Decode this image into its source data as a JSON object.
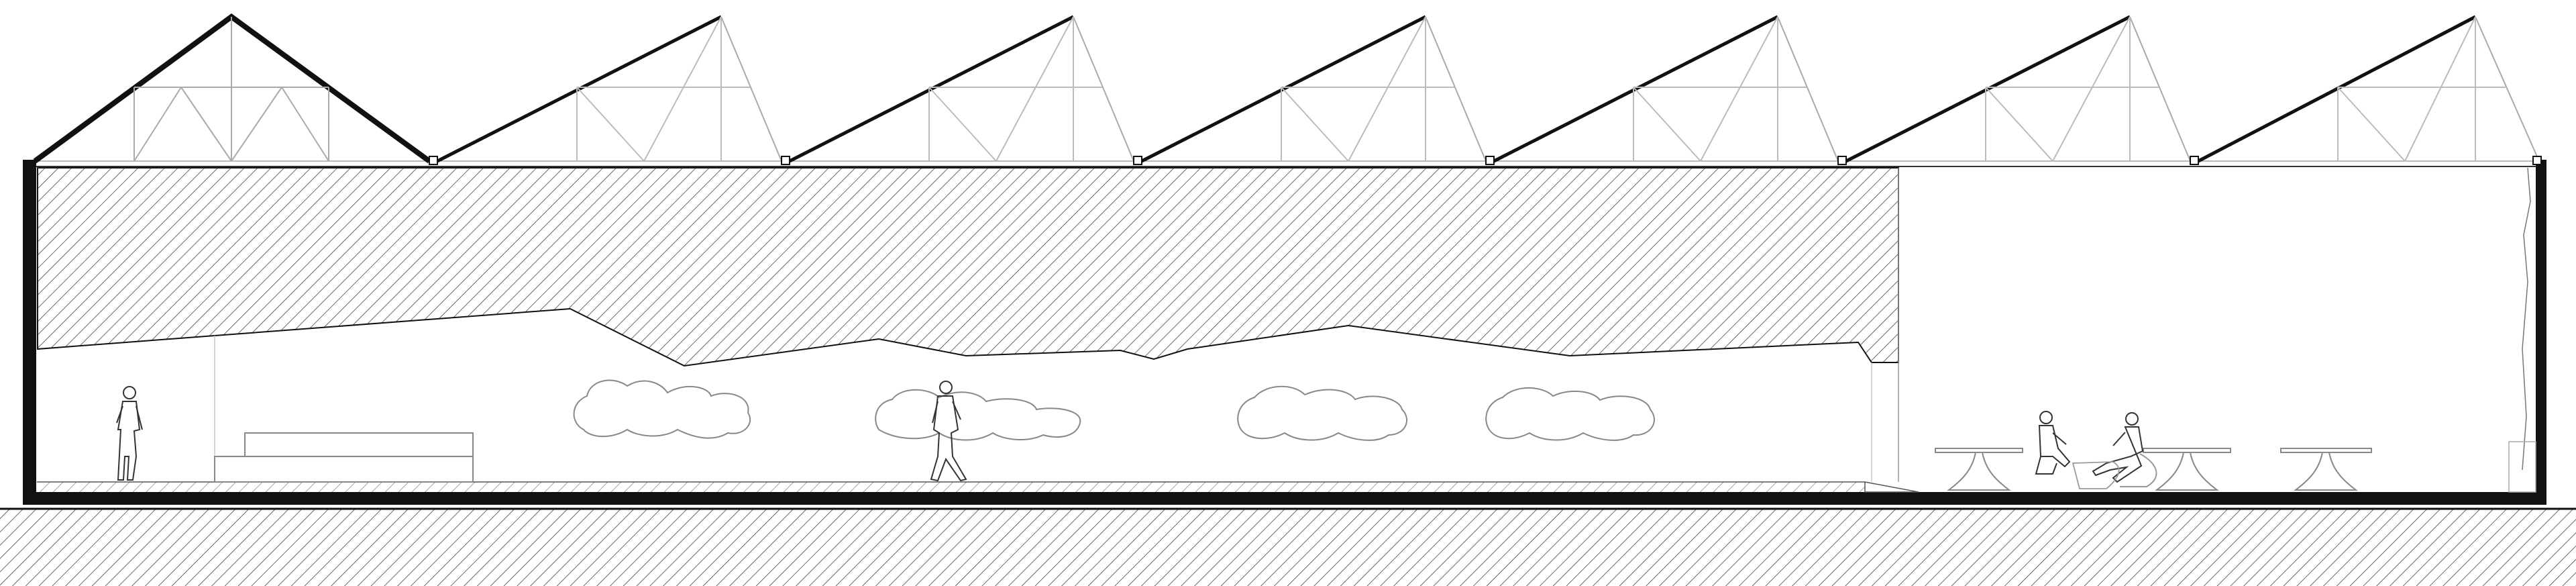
{
  "drawing": {
    "type": "architectural building section",
    "roof": {
      "gable_bays": 1,
      "sawtooth_bays": 6
    },
    "interior": {
      "hatched_mass": true,
      "cloud_artworks": 4,
      "standing_figures": 2,
      "seated_figures": 2,
      "round_tables": 3
    },
    "colors": {
      "line": "#111111",
      "thin_line": "#888888",
      "background": "#ffffff"
    }
  }
}
